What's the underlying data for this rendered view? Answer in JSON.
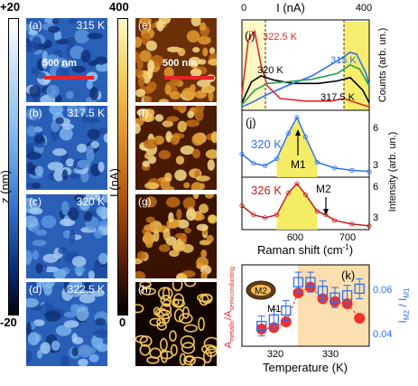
{
  "colorbar_z": {
    "top": "+20",
    "bottom": "-20",
    "label": "z (nm)"
  },
  "colorbar_i": {
    "top": "400",
    "bottom": "0",
    "label": "I (nA)"
  },
  "afm_panels": [
    {
      "label": "(a)",
      "temp": "315 K"
    },
    {
      "label": "(b)",
      "temp": "317.5 K"
    },
    {
      "label": "(c)",
      "temp": "320 K"
    },
    {
      "label": "(d)",
      "temp": "322.5 K"
    }
  ],
  "current_panels": [
    {
      "label": "(e)"
    },
    {
      "label": "(f)"
    },
    {
      "label": "(g)"
    },
    {
      "label": "(h)"
    }
  ],
  "scalebar_text": "500 nm",
  "scalebar_text_e": "500 nm",
  "colors": {
    "topo_dark": "#0a1f57",
    "topo_light": "#7fb8ef",
    "cur_dark": "#1a0a00",
    "cur_bright": "#f2c35a",
    "accent_red": "#e8242a",
    "accent_blue": "#2f6ff2"
  },
  "panel_i": {
    "label": "(i)",
    "top_axis_label": "I (nA)",
    "top_ticks": [
      "0",
      "400"
    ],
    "ylabel": "Counts (arb. un.)",
    "annotations": [
      "322.5 K",
      "320 K",
      "315 K",
      "317.5 K"
    ]
  },
  "panel_j": {
    "label": "(j)",
    "top_temp": "320 K",
    "bottom_temp": "326 K",
    "m1": "M1",
    "m2": "M2",
    "xlabel": "Raman shift (cm",
    "xlabel_sup": "-1",
    "xlabel_end": ")",
    "ylabel": "Intensity (arb. un.)",
    "x_ticks": [
      "600",
      "700"
    ],
    "y_ticks_top": [
      "6",
      "3"
    ],
    "y_ticks_bottom": [
      "6",
      "3"
    ]
  },
  "panel_k": {
    "label": "(k)",
    "xlabel": "Temperature (K)",
    "x_ticks": [
      "320",
      "330"
    ],
    "ylabel_right": "I",
    "ylabel_right_sub1": "M2",
    "ylabel_right_mid": " / I",
    "ylabel_right_sub2": "M1",
    "y_ticks_right": [
      "0.06",
      "0.04"
    ],
    "ylabel_left": "A",
    "ylabel_left_sub1": "metallic",
    "ylabel_left_mid": "/A",
    "ylabel_left_sub2": "semiconducting",
    "inset_m2": "M2",
    "inset_m1": "M1"
  },
  "chart_data": [
    {
      "type": "line",
      "title": "(i)",
      "xlabel": "I (nA)",
      "ylabel": "Counts (arb. un.)",
      "xlim": [
        0,
        400
      ],
      "series": [
        {
          "name": "322.5 K",
          "x": [
            0,
            20,
            40,
            60,
            80,
            120,
            200,
            280,
            320,
            360,
            400
          ],
          "values": [
            0.2,
            0.85,
            0.95,
            0.55,
            0.3,
            0.15,
            0.12,
            0.12,
            0.15,
            0.1,
            0.05
          ]
        },
        {
          "name": "320 K",
          "x": [
            0,
            30,
            60,
            100,
            160,
            240,
            300,
            340,
            380,
            400
          ],
          "values": [
            0.1,
            0.35,
            0.42,
            0.37,
            0.33,
            0.33,
            0.36,
            0.4,
            0.25,
            0.1
          ]
        },
        {
          "name": "315 K",
          "x": [
            0,
            40,
            80,
            140,
            220,
            300,
            340,
            360,
            390,
            400
          ],
          "values": [
            0.05,
            0.12,
            0.2,
            0.3,
            0.42,
            0.6,
            0.7,
            0.68,
            0.45,
            0.3
          ]
        },
        {
          "name": "317.5 K",
          "x": [
            0,
            40,
            80,
            140,
            220,
            300,
            340,
            370,
            400
          ],
          "values": [
            0.08,
            0.25,
            0.33,
            0.35,
            0.38,
            0.45,
            0.55,
            0.5,
            0.3
          ]
        }
      ]
    },
    {
      "type": "line",
      "title": "(j)",
      "xlabel": "Raman shift (cm-1)",
      "ylabel": "Intensity (arb. un.)",
      "xlim": [
        520,
        740
      ],
      "series": [
        {
          "name": "320 K",
          "x": [
            520,
            540,
            560,
            580,
            600,
            615,
            630,
            650,
            680,
            710,
            740
          ],
          "values": [
            4.0,
            3.2,
            3.0,
            3.6,
            5.8,
            7.2,
            5.5,
            3.3,
            2.8,
            2.6,
            2.5
          ]
        },
        {
          "name": "326 K",
          "x": [
            520,
            540,
            560,
            580,
            600,
            615,
            630,
            650,
            665,
            680,
            710,
            740
          ],
          "values": [
            4.6,
            3.6,
            3.3,
            3.6,
            6.0,
            7.0,
            5.8,
            4.0,
            3.6,
            3.0,
            2.6,
            2.4
          ]
        }
      ]
    },
    {
      "type": "scatter",
      "title": "(k)",
      "xlabel": "Temperature (K)",
      "xlim": [
        311,
        337
      ],
      "series": [
        {
          "name": "Ametallic/Asemiconducting",
          "x": [
            315,
            317.5,
            320,
            322.5,
            325,
            327.5,
            330,
            332.5,
            335
          ],
          "values": [
            0.2,
            0.22,
            0.3,
            0.7,
            0.78,
            0.62,
            0.58,
            0.55,
            0.35
          ]
        },
        {
          "name": "IM2/IM1",
          "x": [
            315,
            317.5,
            320,
            322.5,
            325,
            327.5,
            330,
            332.5,
            335
          ],
          "values": [
            0.043,
            0.046,
            0.05,
            0.063,
            0.063,
            0.059,
            0.056,
            0.057,
            0.06
          ]
        }
      ],
      "yticks_right": [
        0.04,
        0.06
      ]
    }
  ]
}
